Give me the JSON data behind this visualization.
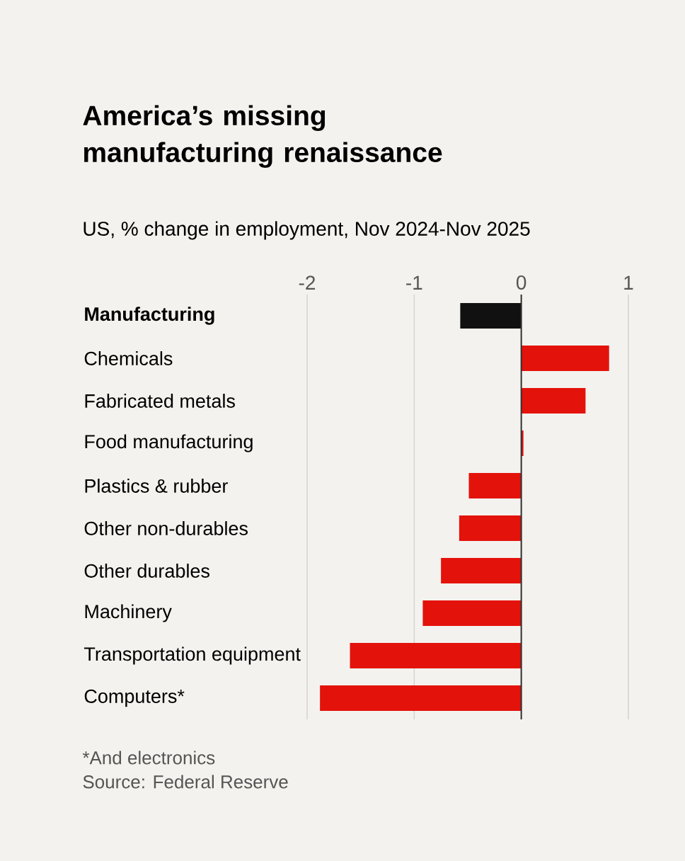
{
  "chart_data": {
    "type": "bar",
    "orientation": "horizontal",
    "title": "America’s missing manufacturing renaissance",
    "subtitle": "US, % change in employment, Nov 2024-Nov 2025",
    "categories": [
      "Manufacturing",
      "Chemicals",
      "Fabricated metals",
      "Food manufacturing",
      "Plastics & rubber",
      "Other non-durables",
      "Other durables",
      "Machinery",
      "Transportation equipment",
      "Computers*"
    ],
    "values": [
      -0.57,
      0.82,
      0.6,
      0.02,
      -0.49,
      -0.58,
      -0.75,
      -0.92,
      -1.6,
      -1.88
    ],
    "colors": [
      "#111111",
      "#e3120b",
      "#e3120b",
      "#e3120b",
      "#e3120b",
      "#e3120b",
      "#e3120b",
      "#e3120b",
      "#e3120b",
      "#e3120b"
    ],
    "xlim": [
      -2,
      1
    ],
    "xticks": [
      -2,
      -1,
      0,
      1
    ],
    "grid": "x",
    "annotations": [
      "*And electronics",
      "Source: Federal Reserve"
    ]
  }
}
